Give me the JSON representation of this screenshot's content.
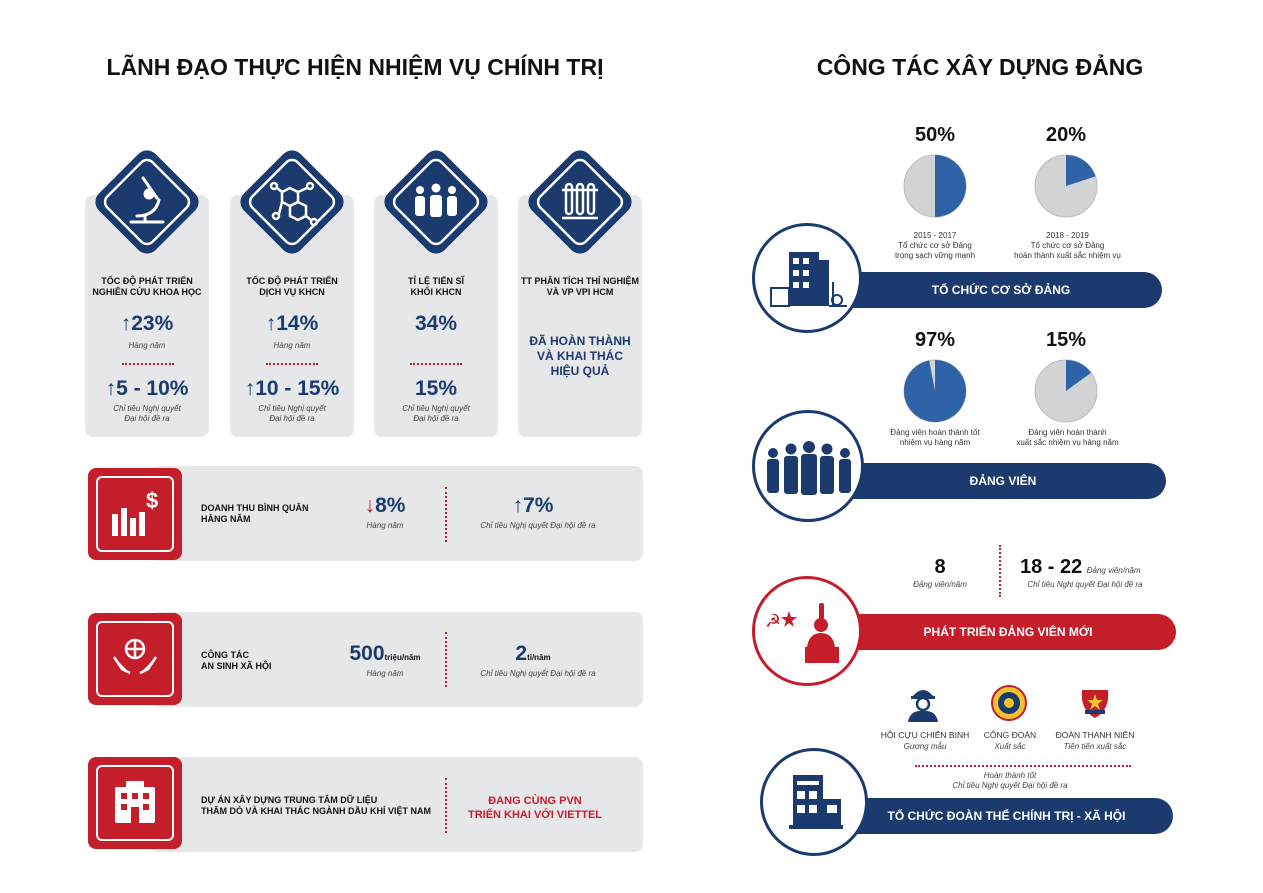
{
  "left_title": "LÃNH ĐẠO THỰC HIỆN NHIỆM VỤ CHÍNH TRỊ",
  "right_title": "CÔNG TÁC XÂY DỰNG ĐẢNG",
  "cards": [
    {
      "icon": "microscope-icon",
      "label": "TỐC ĐỘ PHÁT TRIỂN\nNGHIÊN CỨU KHOA HỌC",
      "value1": "23%",
      "cap1": "Hàng năm",
      "value2": "5 - 10%",
      "cap2": "Chỉ tiêu Nghị quyết\nĐại hội đề ra"
    },
    {
      "icon": "molecule-icon",
      "label": "TỐC ĐỘ PHÁT TRIỂN\nDỊCH VỤ KHCN",
      "value1": "14%",
      "cap1": "Hàng năm",
      "value2": "10 - 15%",
      "cap2": "Chỉ tiêu Nghị quyết\nĐại hội đề ra"
    },
    {
      "icon": "people-icon",
      "label": "TỈ LỆ TIẾN SĨ\nKHỐI KHCN",
      "value1": "34%",
      "cap1": "",
      "value2": "15%",
      "cap2": "Chỉ tiêu Nghị quyết\nĐại hội đề ra"
    },
    {
      "icon": "test-tubes-icon",
      "label": "TT PHÂN TÍCH THÍ NGHIỆM\nVÀ VP VPI HCM",
      "status": "ĐÃ HOÀN THÀNH\nVÀ KHAI THÁC\nHIỆU QUẢ"
    }
  ],
  "rows": [
    {
      "icon": "revenue-chart-icon",
      "label": "DOANH THU BÌNH QUÂN\nHÀNG NĂM",
      "value1": "8%",
      "cap1": "Hàng năm",
      "value2": "7%",
      "cap2": "Chỉ tiêu Nghị quyết Đại hội đề ra"
    },
    {
      "icon": "hands-globe-icon",
      "label": "CÔNG TÁC\nAN SINH XÃ HỘI",
      "value1": "500",
      "unit1": "triệu/năm",
      "cap1": "Hàng năm",
      "value2": "2",
      "unit2": "tỉ/năm",
      "cap2": "Chỉ tiêu Nghị quyết Đại hội đề ra"
    },
    {
      "icon": "building-icon",
      "label": "DỰ ÁN XÂY DỰNG TRUNG TÂM DỮ LIỆU\nTHĂM DÒ VÀ KHAI THÁC NGÀNH DẦU KHÍ VIỆT NAM",
      "status": "ĐANG CÙNG PVN\nTRIỂN KHAI VỚI VIETTEL"
    }
  ],
  "party_org": {
    "bar": "TỔ CHỨC CƠ SỞ ĐẢNG",
    "pies": [
      {
        "pct": "50%",
        "value": 50,
        "cap": "2015 - 2017\nTổ chức cơ sở Đảng\ntrong sạch vững mạnh"
      },
      {
        "pct": "20%",
        "value": 20,
        "cap": "2018 - 2019\nTổ chức cơ sở Đảng\nhoàn thành xuất sắc nhiệm vụ"
      }
    ]
  },
  "members": {
    "bar": "ĐẢNG VIÊN",
    "pies": [
      {
        "pct": "97%",
        "value": 97,
        "cap": "Đảng viên hoàn thành tốt\nnhiệm vụ hàng năm"
      },
      {
        "pct": "15%",
        "value": 15,
        "cap": "Đảng viên hoàn thành\nxuất sắc nhiệm vụ hàng năm"
      }
    ]
  },
  "new_members": {
    "bar": "PHÁT TRIỂN ĐẢNG VIÊN MỚI",
    "value1": "8",
    "cap1": "Đảng viên/năm",
    "value2": "18 - 22",
    "unit2": "Đảng viên/năm",
    "cap2": "Chỉ tiêu Nghị quyết Đại hội đề ra"
  },
  "mass_orgs": {
    "bar": "TỔ CHỨC ĐOÀN THỂ CHÍNH TRỊ - XÃ HỘI",
    "items": [
      {
        "icon": "veteran-icon",
        "name": "HỘI CỰU CHIẾN BINH",
        "cap": "Gương mẫu"
      },
      {
        "icon": "trade-union-icon",
        "name": "CÔNG ĐOÀN",
        "cap": "Xuất sắc"
      },
      {
        "icon": "youth-union-icon",
        "name": "ĐOÀN THANH NIÊN",
        "cap": "Tiên tiến xuất sắc"
      }
    ],
    "footer": "Hoàn thành tốt\nChỉ tiêu Nghị quyết Đại hội đề ra"
  },
  "colors": {
    "navy": "#1b3a6e",
    "red": "#c41e2b",
    "pie_blue": "#2f63a8",
    "pie_grey": "#d2d3d5",
    "card": "#e6e7e9"
  }
}
